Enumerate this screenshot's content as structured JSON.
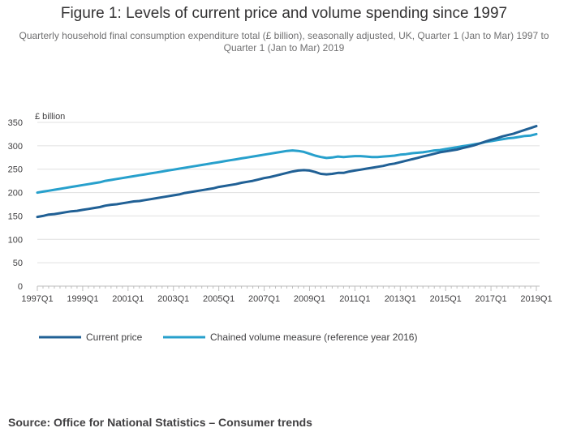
{
  "title": "Figure 1: Levels of current price and volume spending since 1997",
  "subtitle": "Quarterly household final consumption expenditure total (£ billion), seasonally adjusted, UK, Quarter 1 (Jan to Mar) 1997 to Quarter 1 (Jan to Mar) 2019",
  "source": "Source: Office for National Statistics – Consumer trends",
  "colors": {
    "current_price": "#206095",
    "volume": "#27a0cc",
    "grid": "#e0e0e0",
    "axis": "#bdbdbd"
  },
  "chart_data": {
    "type": "line",
    "ylabel": "£ billion",
    "ylim": [
      0,
      350
    ],
    "yticks": [
      0,
      50,
      100,
      150,
      200,
      250,
      300,
      350
    ],
    "x_start_year": 1997,
    "x_end_year": 2019,
    "xticks": [
      "1997Q1",
      "1999Q1",
      "2001Q1",
      "2003Q1",
      "2005Q1",
      "2007Q1",
      "2009Q1",
      "2011Q1",
      "2013Q1",
      "2015Q1",
      "2017Q1",
      "2019Q1"
    ],
    "series": [
      {
        "name": "Current price",
        "color": "#206095",
        "values": [
          148,
          150,
          153,
          154,
          156,
          158,
          160,
          161,
          163,
          165,
          167,
          169,
          172,
          174,
          175,
          177,
          179,
          181,
          182,
          184,
          186,
          188,
          190,
          192,
          194,
          196,
          199,
          201,
          203,
          205,
          207,
          209,
          212,
          214,
          216,
          218,
          221,
          223,
          225,
          228,
          231,
          233,
          236,
          239,
          242,
          245,
          247,
          248,
          247,
          244,
          240,
          239,
          240,
          242,
          242,
          245,
          247,
          249,
          251,
          253,
          255,
          257,
          260,
          262,
          265,
          268,
          271,
          274,
          277,
          280,
          283,
          286,
          288,
          290,
          292,
          295,
          298,
          301,
          305,
          309,
          313,
          316,
          320,
          323,
          326,
          330,
          334,
          338,
          342
        ]
      },
      {
        "name": "Chained volume measure (reference year 2016)",
        "color": "#27a0cc",
        "values": [
          200,
          202,
          204,
          206,
          208,
          210,
          212,
          214,
          216,
          218,
          220,
          222,
          225,
          227,
          229,
          231,
          233,
          235,
          237,
          239,
          241,
          243,
          245,
          247,
          249,
          251,
          253,
          255,
          257,
          259,
          261,
          263,
          265,
          267,
          269,
          271,
          273,
          275,
          277,
          279,
          281,
          283,
          285,
          287,
          289,
          290,
          289,
          287,
          283,
          279,
          276,
          274,
          275,
          277,
          276,
          277,
          278,
          278,
          277,
          276,
          276,
          277,
          278,
          279,
          281,
          282,
          284,
          285,
          286,
          288,
          290,
          291,
          293,
          295,
          297,
          299,
          301,
          303,
          305,
          308,
          310,
          312,
          314,
          316,
          317,
          319,
          321,
          322,
          325
        ]
      }
    ]
  }
}
